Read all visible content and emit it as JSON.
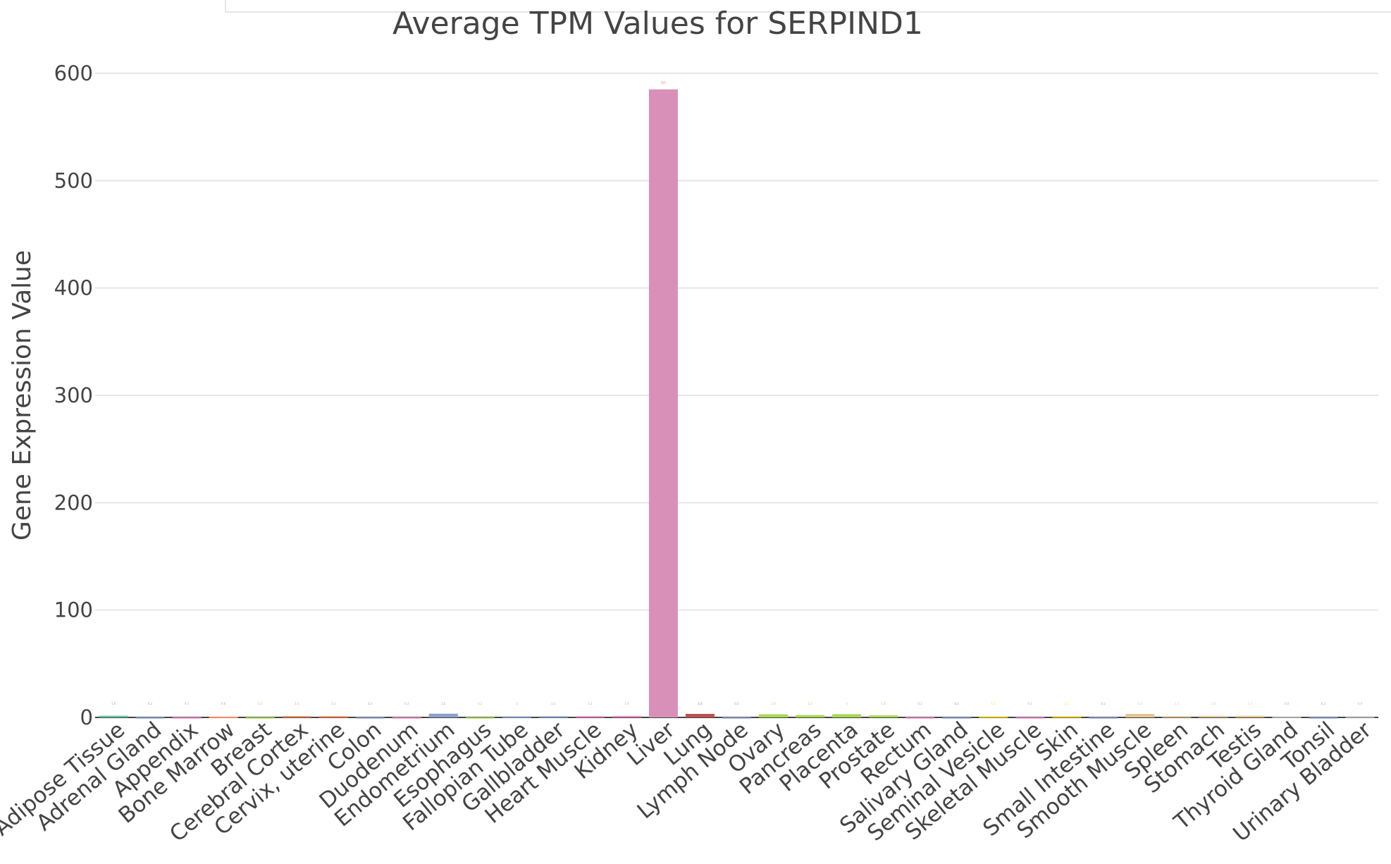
{
  "chart_data": {
    "type": "bar",
    "title": "Average TPM Values for SERPIND1",
    "xlabel": "",
    "ylabel": "Gene Expression Value",
    "ylim": [
      0,
      600
    ],
    "yticks": [
      0,
      100,
      200,
      300,
      400,
      500,
      600
    ],
    "grid": true,
    "legend": false,
    "categories": [
      "Adipose Tissue",
      "Adrenal Gland",
      "Appendix",
      "Bone Marrow",
      "Breast",
      "Cerebral Cortex",
      "Cervix, uterine",
      "Colon",
      "Duodenum",
      "Endometrium",
      "Esophagus",
      "Fallopian Tube",
      "Gallbladder",
      "Heart Muscle",
      "Kidney",
      "Liver",
      "Lung",
      "Lymph Node",
      "Ovary",
      "Pancreas",
      "Placenta",
      "Prostate",
      "Rectum",
      "Salivary Gland",
      "Seminal Vesicle",
      "Skeletal Muscle",
      "Skin",
      "Small Intestine",
      "Smooth Muscle",
      "Spleen",
      "Stomach",
      "Testis",
      "Thyroid Gland",
      "Tonsil",
      "Urinary Bladder"
    ],
    "values": [
      1.6,
      0.2,
      0.2,
      0.6,
      0.2,
      1.3,
      1.2,
      0.2,
      0.2,
      3.5,
      0.2,
      1.0,
      1.1,
      1.2,
      1.4,
      585,
      3.3,
      0.2,
      2.9,
      2.2,
      3.0,
      1.9,
      0.2,
      0.2,
      1.1,
      0.2,
      1.2,
      0.2,
      3.3,
      1.2,
      1.4,
      1.5,
      0.8,
      0.2,
      0.9
    ],
    "colors": [
      "#66c2a5",
      "#8da0cb",
      "#e78ac3",
      "#fc8d62",
      "#a6d854",
      "#fc8d62",
      "#fc8d62",
      "#8da0cb",
      "#e78ac3",
      "#8da0cb",
      "#a6d854",
      "#8da0cb",
      "#8da0cb",
      "#e78ac3",
      "#e78ac3",
      "#d890b8",
      "#c0504d",
      "#8da0cb",
      "#a6d854",
      "#a6d854",
      "#a6d854",
      "#a6d854",
      "#e78ac3",
      "#8da0cb",
      "#ffd92f",
      "#e78ac3",
      "#ffd92f",
      "#8da0cb",
      "#e5c494",
      "#e5c494",
      "#e5c494",
      "#e5c494",
      "#b3b3b3",
      "#8da0cb",
      "#b3b3b3"
    ]
  }
}
